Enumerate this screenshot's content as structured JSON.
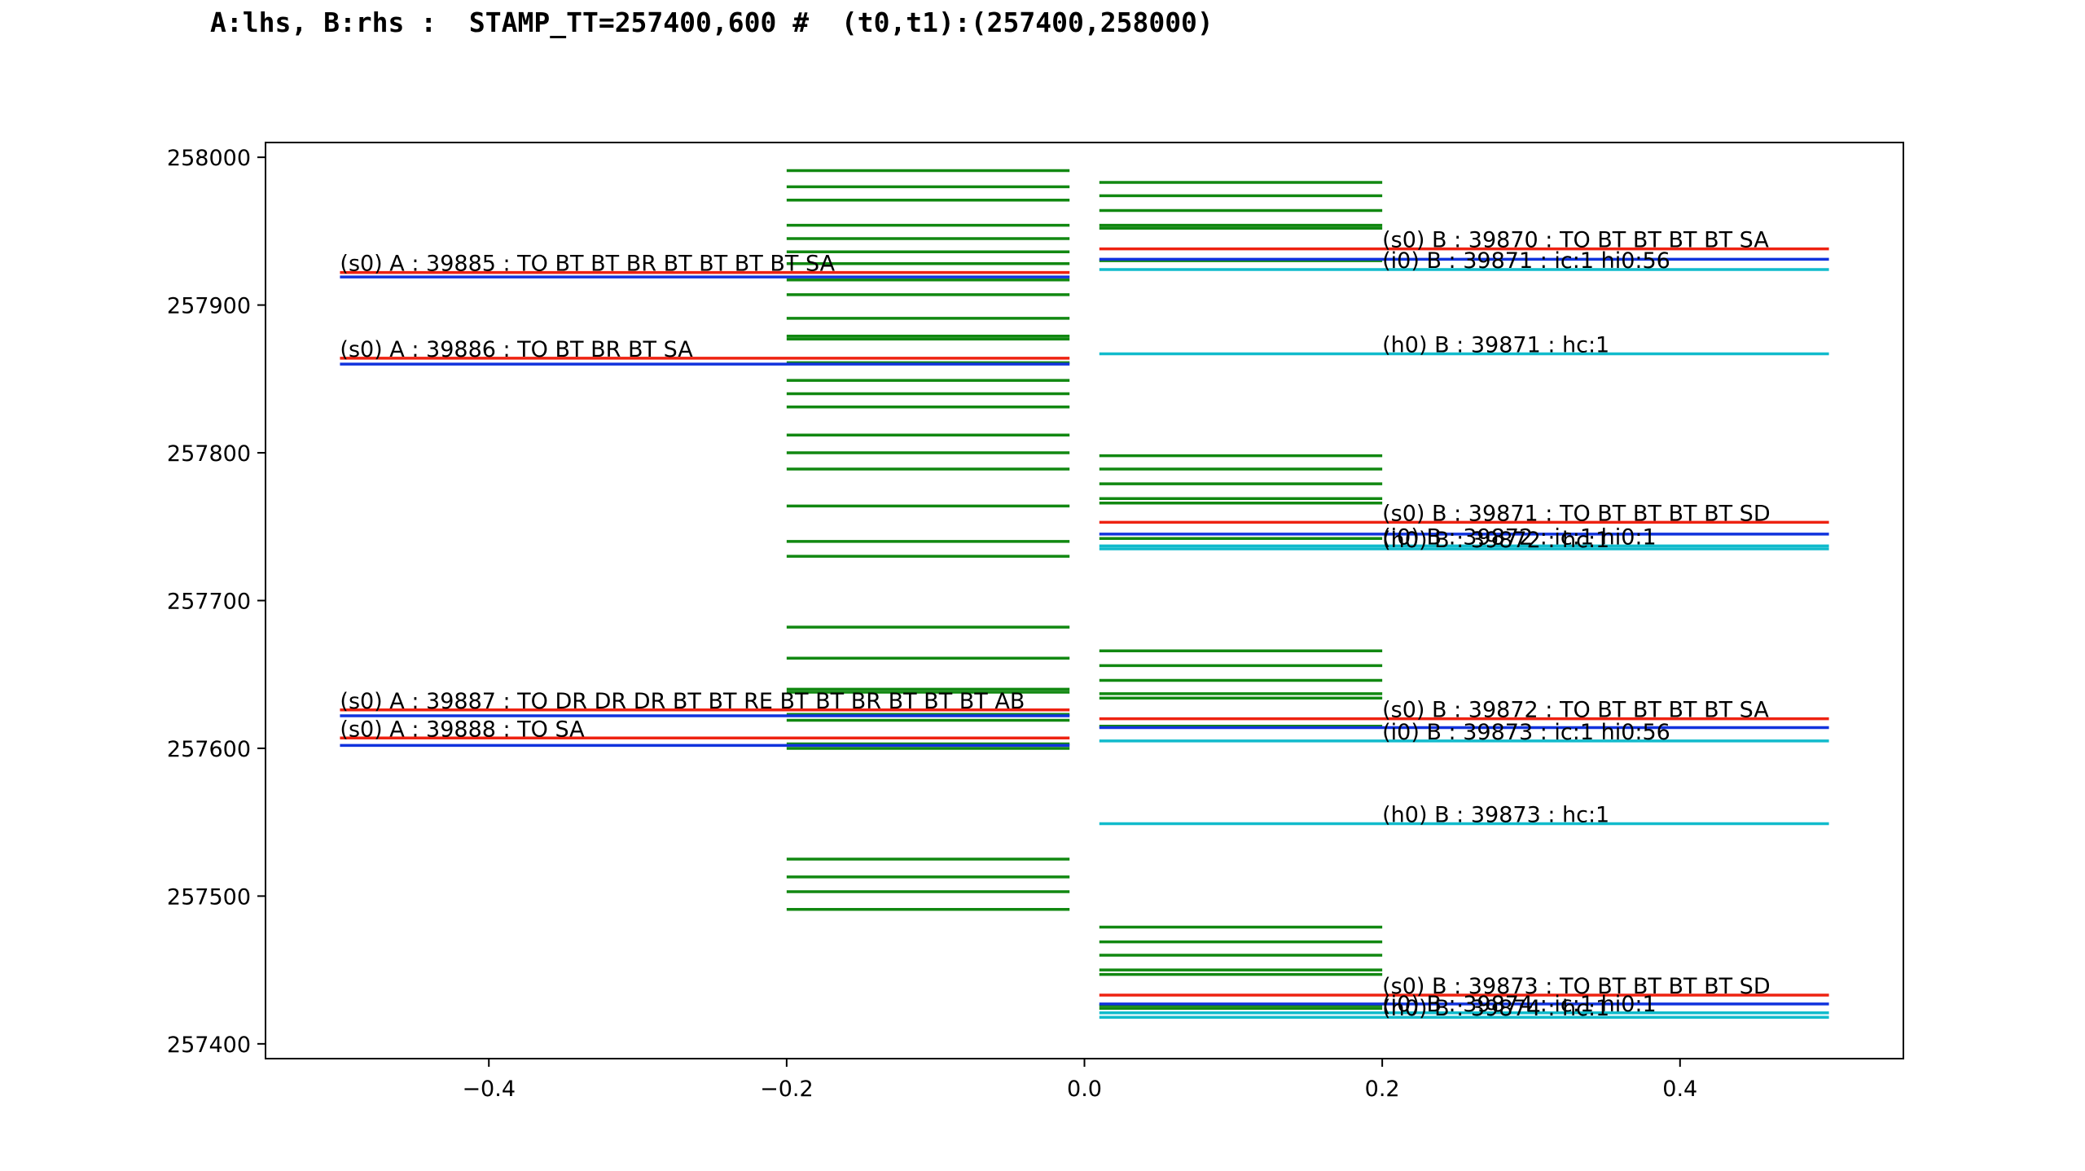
{
  "title": "A:lhs, B:rhs :  STAMP_TT=257400,600 #  (t0,t1):(257400,258000)",
  "colors": {
    "s": "#ee2211",
    "i": "#1133dd",
    "h": "#11bbcc",
    "green": "#118811",
    "axis": "#000000"
  },
  "chart_data": {
    "type": "line",
    "title": "A:lhs, B:rhs :  STAMP_TT=257400,600 #  (t0,t1):(257400,258000)",
    "xlabel": "",
    "ylabel": "",
    "xlim": [
      -0.55,
      0.55
    ],
    "ylim": [
      257390,
      258010
    ],
    "xticks": [
      -0.4,
      -0.2,
      0.0,
      0.2,
      0.4
    ],
    "xtick_labels": [
      "−0.4",
      "−0.2",
      "0.0",
      "0.2",
      "0.4"
    ],
    "yticks": [
      257400,
      257500,
      257600,
      257700,
      257800,
      257900,
      258000
    ],
    "ytick_labels": [
      "257400",
      "257500",
      "257600",
      "257700",
      "257800",
      "257900",
      "258000"
    ],
    "grid": false,
    "legend": "none",
    "labeled_segments": [
      {
        "x0": -0.5,
        "x1": -0.01,
        "y": 257922,
        "color": "s",
        "label": "(s0) A : 39885 : TO BT BT BR BT BT BT BT SA"
      },
      {
        "x0": -0.5,
        "x1": -0.01,
        "y": 257919,
        "color": "i",
        "label": ""
      },
      {
        "x0": -0.5,
        "x1": -0.01,
        "y": 257864,
        "color": "s",
        "label": "(s0) A : 39886 : TO BT BR BT SA"
      },
      {
        "x0": -0.5,
        "x1": -0.01,
        "y": 257860,
        "color": "i",
        "label": ""
      },
      {
        "x0": -0.5,
        "x1": -0.01,
        "y": 257626,
        "color": "s",
        "label": "(s0) A : 39887 : TO DR DR DR BT BT RE BT BT BR BT BT BT AB"
      },
      {
        "x0": -0.5,
        "x1": -0.01,
        "y": 257622,
        "color": "i",
        "label": ""
      },
      {
        "x0": -0.5,
        "x1": -0.01,
        "y": 257607,
        "color": "s",
        "label": "(s0) A : 39888 : TO SA"
      },
      {
        "x0": -0.5,
        "x1": -0.01,
        "y": 257602,
        "color": "i",
        "label": ""
      },
      {
        "x0": 0.01,
        "x1": 0.5,
        "y": 257938,
        "color": "s",
        "label": "(s0) B : 39870 : TO BT BT BT BT SA"
      },
      {
        "x0": 0.01,
        "x1": 0.5,
        "y": 257931,
        "color": "i",
        "label": ""
      },
      {
        "x0": 0.01,
        "x1": 0.5,
        "y": 257924,
        "color": "h",
        "label": "(i0) B : 39871 : ic:1 hi0:56"
      },
      {
        "x0": 0.01,
        "x1": 0.5,
        "y": 257867,
        "color": "h",
        "label": "(h0) B : 39871 :  hc:1"
      },
      {
        "x0": 0.01,
        "x1": 0.5,
        "y": 257753,
        "color": "s",
        "label": "(s0) B : 39871 : TO BT BT BT BT SD"
      },
      {
        "x0": 0.01,
        "x1": 0.5,
        "y": 257745,
        "color": "i",
        "label": ""
      },
      {
        "x0": 0.01,
        "x1": 0.5,
        "y": 257737,
        "color": "h",
        "label": "(i0) B : 39872 : ic:1 hi0:1"
      },
      {
        "x0": 0.01,
        "x1": 0.5,
        "y": 257735,
        "color": "h",
        "label": "(h0) B : 39872 :  hc:1"
      },
      {
        "x0": 0.01,
        "x1": 0.5,
        "y": 257620,
        "color": "s",
        "label": "(s0) B : 39872 : TO BT BT BT BT SA"
      },
      {
        "x0": 0.01,
        "x1": 0.5,
        "y": 257614,
        "color": "i",
        "label": ""
      },
      {
        "x0": 0.01,
        "x1": 0.5,
        "y": 257605,
        "color": "h",
        "label": "(i0) B : 39873 : ic:1 hi0:56"
      },
      {
        "x0": 0.01,
        "x1": 0.5,
        "y": 257549,
        "color": "h",
        "label": "(h0) B : 39873 :  hc:1"
      },
      {
        "x0": 0.01,
        "x1": 0.5,
        "y": 257433,
        "color": "s",
        "label": "(s0) B : 39873 : TO BT BT BT BT SD"
      },
      {
        "x0": 0.01,
        "x1": 0.5,
        "y": 257427,
        "color": "i",
        "label": ""
      },
      {
        "x0": 0.01,
        "x1": 0.5,
        "y": 257421,
        "color": "h",
        "label": "(i0) B : 39874 : ic:1 hi0:1"
      },
      {
        "x0": 0.01,
        "x1": 0.5,
        "y": 257418,
        "color": "h",
        "label": "(h0) B : 39874 :  hc:1"
      }
    ],
    "green_segments": {
      "color": "green",
      "left": {
        "x0": -0.2,
        "x1": -0.01,
        "y": [
          257991,
          257980,
          257971,
          257954,
          257945,
          257936,
          257928,
          257917,
          257907,
          257891,
          257879,
          257877,
          257861,
          257849,
          257840,
          257831,
          257812,
          257800,
          257789,
          257764,
          257740,
          257730,
          257682,
          257661,
          257640,
          257638,
          257623,
          257619,
          257603,
          257600,
          257525,
          257513,
          257503,
          257491
        ]
      },
      "right": {
        "x0": 0.01,
        "x1": 0.2,
        "y": [
          257983,
          257974,
          257964,
          257954,
          257952,
          257930,
          257798,
          257789,
          257779,
          257769,
          257766,
          257742,
          257666,
          257656,
          257646,
          257637,
          257634,
          257615,
          257479,
          257469,
          257460,
          257450,
          257447,
          257426,
          257424
        ]
      }
    }
  }
}
